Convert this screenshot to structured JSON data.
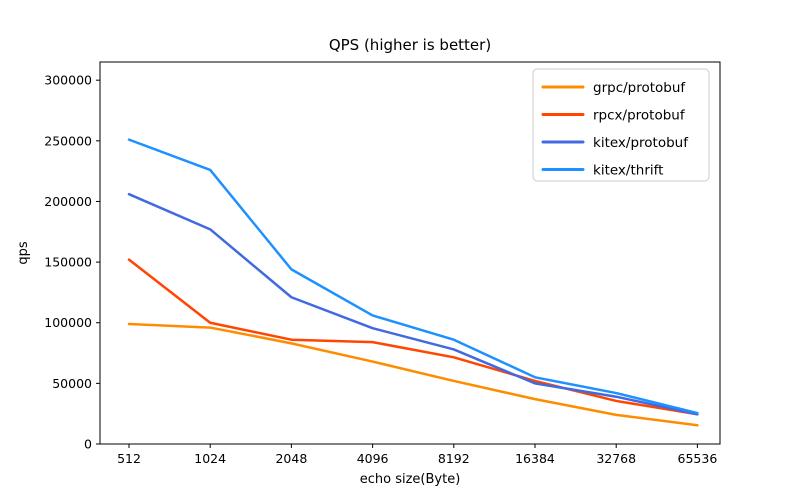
{
  "figure": {
    "background": "#ffffff",
    "spine_color": "#000000"
  },
  "chart_data": {
    "type": "line",
    "title": "QPS (higher is better)",
    "xlabel": "echo size(Byte)",
    "ylabel": "qps",
    "categories": [
      "512",
      "1024",
      "2048",
      "4096",
      "8192",
      "16384",
      "32768",
      "65536"
    ],
    "series": [
      {
        "name": "grpc/protobuf",
        "color": "#ff8c00",
        "values": [
          99000,
          96000,
          83000,
          68000,
          52000,
          37000,
          24000,
          15500
        ]
      },
      {
        "name": "rpcx/protobuf",
        "color": "#ff4500",
        "values": [
          152000,
          100000,
          86000,
          84000,
          71500,
          52000,
          35500,
          24500
        ]
      },
      {
        "name": "kitex/protobuf",
        "color": "#4169e1",
        "values": [
          206000,
          177000,
          121000,
          95500,
          78000,
          50000,
          39000,
          24500
        ]
      },
      {
        "name": "kitex/thrift",
        "color": "#1e90ff",
        "values": [
          251000,
          226000,
          144000,
          106000,
          86000,
          55000,
          42000,
          25500
        ]
      }
    ],
    "ylim": [
      0,
      315000
    ],
    "yticks": [
      0,
      50000,
      100000,
      150000,
      200000,
      250000,
      300000
    ],
    "grid": false,
    "legend_position": "upper right",
    "line_width": 2.5
  }
}
